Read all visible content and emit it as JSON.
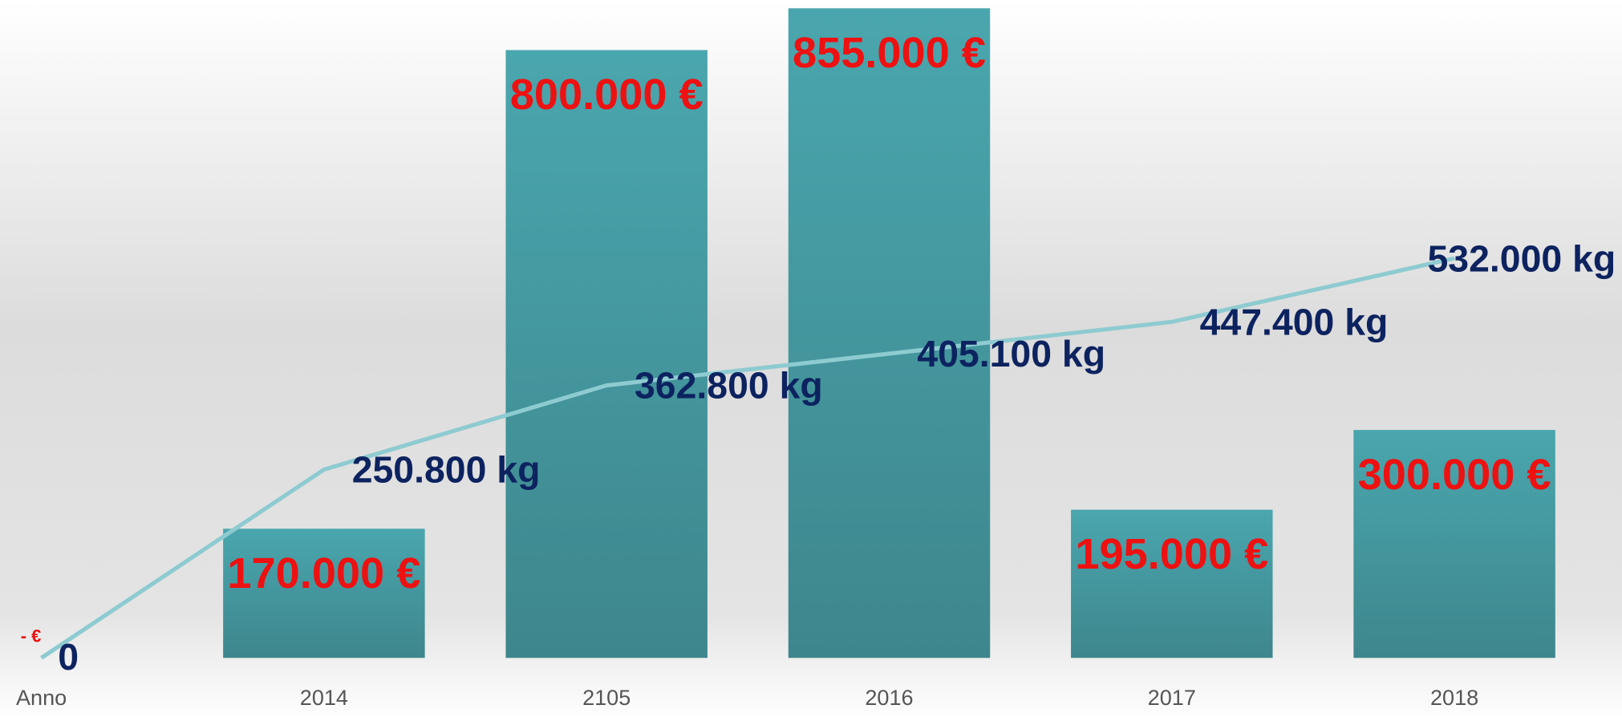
{
  "chart_data": {
    "type": "bar",
    "categories": [
      "Anno",
      "2014",
      "2105",
      "2016",
      "2017",
      "2018"
    ],
    "ylim": [
      0,
      855000
    ],
    "y2lim": [
      0,
      865000
    ],
    "series": [
      {
        "name": "Euro",
        "type": "bar",
        "color": "#46a0a8",
        "values": [
          0,
          170000,
          800000,
          855000,
          195000,
          300000
        ],
        "value_labels": [
          "-  €",
          "170.000 €",
          "800.000 €",
          "855.000 €",
          "195.000 €",
          "300.000 €"
        ]
      },
      {
        "name": "Kg",
        "type": "line",
        "axis": "y2",
        "color": "#8ecbd1",
        "values": [
          0,
          250800,
          362800,
          405100,
          447400,
          532000
        ],
        "value_labels": [
          "0",
          "250.800 kg",
          "362.800 kg",
          "405.100 kg",
          "447.400 kg",
          "532.000 kg"
        ]
      }
    ]
  }
}
